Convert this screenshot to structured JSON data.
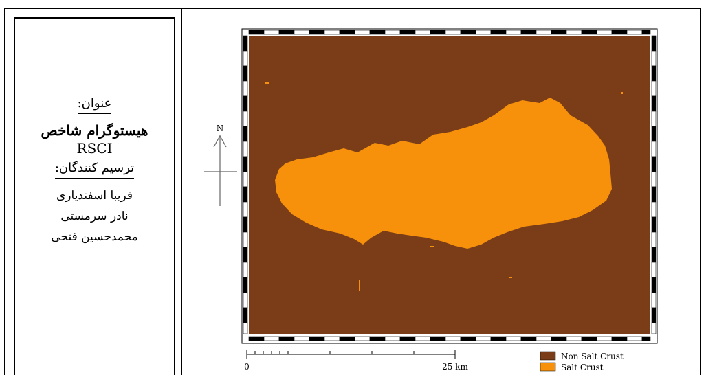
{
  "title_panel": {
    "subject_label": "عنوان:",
    "title_line1": "هیستوگرام شاخص",
    "title_line2": "RSCI",
    "authors_label": "ترسیم کنندگان:",
    "authors": [
      "فریبا اسفندیاری",
      "نادر سرمستی",
      "محمدحسین فتحی"
    ]
  },
  "map": {
    "north_label": "N",
    "scale_start": "0",
    "scale_end": "25 km",
    "background_color": "#7a3d17",
    "legend": [
      {
        "label": "Non Salt Crust",
        "color": "#7a3d17"
      },
      {
        "label": "Salt Crust",
        "color": "#f7910b"
      }
    ]
  }
}
